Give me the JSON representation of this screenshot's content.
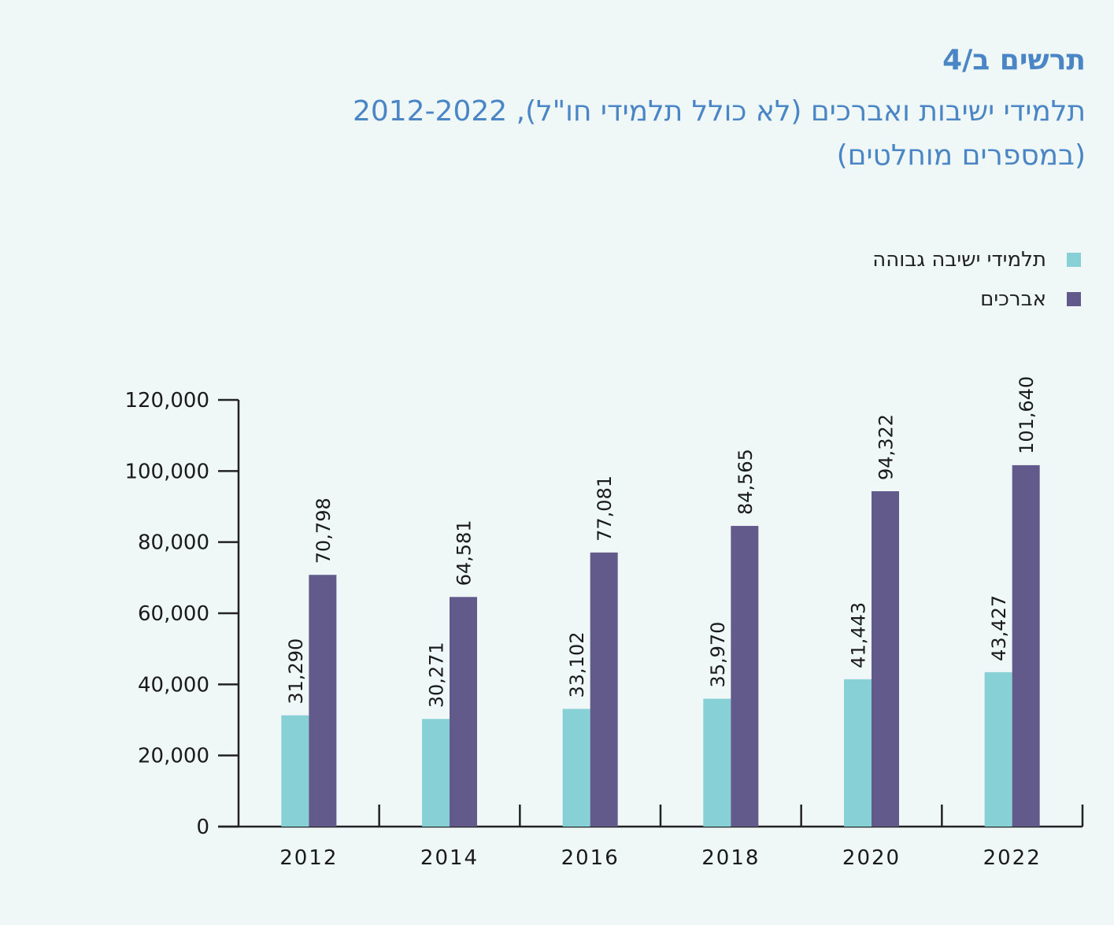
{
  "header": {
    "figure_label": "תרשים ב/4",
    "title_line1": "תלמידי ישיבות ואברכים (לא כולל תלמידי חו\"ל), 2012-2022",
    "title_line2": "(במספרים מוחלטים)"
  },
  "legend": [
    {
      "label": "תלמידי ישיבה גבוהה",
      "color": "#86d0d6"
    },
    {
      "label": "אברכים",
      "color": "#635a8c"
    }
  ],
  "chart_data": {
    "type": "bar",
    "categories": [
      "2012",
      "2014",
      "2016",
      "2018",
      "2020",
      "2022"
    ],
    "series": [
      {
        "name": "תלמידי ישיבה גבוהה",
        "values": [
          31290,
          30271,
          33102,
          35970,
          41443,
          43427
        ],
        "labels": [
          "31,290",
          "30,271",
          "33,102",
          "35,970",
          "41,443",
          "43,427"
        ],
        "color": "#86d0d6"
      },
      {
        "name": "אברכים",
        "values": [
          70798,
          64581,
          77081,
          84565,
          94322,
          101640
        ],
        "labels": [
          "70,798",
          "64,581",
          "77,081",
          "84,565",
          "94,322",
          "101,640"
        ],
        "color": "#635a8c"
      }
    ],
    "y_ticks": [
      "0",
      "20,000",
      "40,000",
      "60,000",
      "80,000",
      "100,000",
      "120,000"
    ],
    "ylim": [
      0,
      120000
    ],
    "xlabel": "",
    "ylabel": "",
    "grid": false,
    "legend_position": "top-right"
  }
}
